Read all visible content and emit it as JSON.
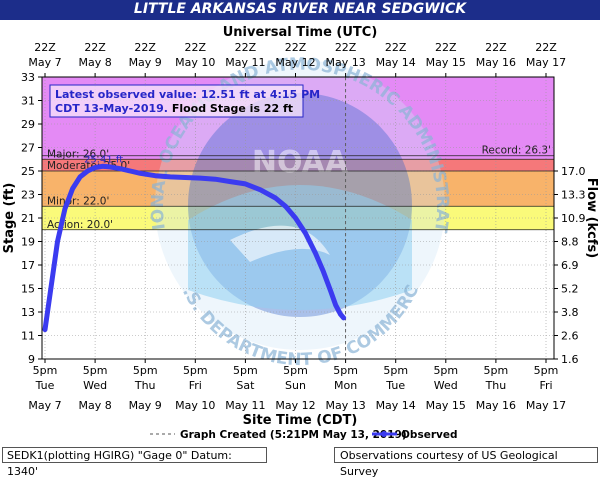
{
  "chart_data": {
    "type": "line",
    "title": "LITTLE ARKANSAS RIVER NEAR SEDGWICK",
    "top_axis_label": "Universal Time (UTC)",
    "xlabel": "Site Time (CDT)",
    "ylabel_left": "Stage (ft)",
    "ylabel_right": "Flow (kcfs)",
    "ylim": [
      9,
      33
    ],
    "left_ticks": [
      9,
      11,
      13,
      15,
      17,
      19,
      21,
      23,
      25,
      27,
      29,
      31,
      33
    ],
    "right_ticks": [
      {
        "label": "1.6",
        "stage": 9
      },
      {
        "label": "2.6",
        "stage": 11
      },
      {
        "label": "3.8",
        "stage": 13
      },
      {
        "label": "5.2",
        "stage": 15
      },
      {
        "label": "6.9",
        "stage": 17
      },
      {
        "label": "8.8",
        "stage": 19
      },
      {
        "label": "10.9",
        "stage": 21
      },
      {
        "label": "13.3",
        "stage": 23
      },
      {
        "label": "17.0",
        "stage": 25
      }
    ],
    "top_ticks": [
      {
        "time": "22Z",
        "date": "May 7"
      },
      {
        "time": "22Z",
        "date": "May 8"
      },
      {
        "time": "22Z",
        "date": "May 9"
      },
      {
        "time": "22Z",
        "date": "May 10"
      },
      {
        "time": "22Z",
        "date": "May 11"
      },
      {
        "time": "22Z",
        "date": "May 12"
      },
      {
        "time": "22Z",
        "date": "May 13"
      },
      {
        "time": "22Z",
        "date": "May 14"
      },
      {
        "time": "22Z",
        "date": "May 15"
      },
      {
        "time": "22Z",
        "date": "May 16"
      },
      {
        "time": "22Z",
        "date": "May 17"
      }
    ],
    "bottom_ticks": [
      {
        "time": "5pm",
        "day": "Tue",
        "date": "May 7"
      },
      {
        "time": "5pm",
        "day": "Wed",
        "date": "May 8"
      },
      {
        "time": "5pm",
        "day": "Thu",
        "date": "May 9"
      },
      {
        "time": "5pm",
        "day": "Fri",
        "date": "May 10"
      },
      {
        "time": "5pm",
        "day": "Sat",
        "date": "May 11"
      },
      {
        "time": "5pm",
        "day": "Sun",
        "date": "May 12"
      },
      {
        "time": "5pm",
        "day": "Mon",
        "date": "May 13"
      },
      {
        "time": "5pm",
        "day": "Tue",
        "date": "May 14"
      },
      {
        "time": "5pm",
        "day": "Wed",
        "date": "May 15"
      },
      {
        "time": "5pm",
        "day": "Thu",
        "date": "May 16"
      },
      {
        "time": "5pm",
        "day": "Fri",
        "date": "May 17"
      }
    ],
    "flood_categories": [
      {
        "name": "Major",
        "label": "Major: 26.0'",
        "from": 26,
        "to": 33,
        "color": "#e48af5"
      },
      {
        "name": "Moderate",
        "label": "Moderate: 25.0'",
        "from": 25,
        "to": 26,
        "color": "#f5787a"
      },
      {
        "name": "Minor",
        "label": "Minor: 22.0'",
        "from": 22,
        "to": 25,
        "color": "#f8b36a"
      },
      {
        "name": "Action",
        "label": "Action: 20.0'",
        "from": 20,
        "to": 22,
        "color": "#fafa7a"
      }
    ],
    "record": {
      "label": "Record: 26.3'",
      "value": 26.3
    },
    "peak_label": "25.41 ft",
    "graph_created_day": 6.0,
    "series": [
      {
        "name": "Observed",
        "color": "#3b3bf0",
        "x_day_offset": [
          0.0,
          0.05,
          0.15,
          0.25,
          0.4,
          0.55,
          0.7,
          0.85,
          1.0,
          1.15,
          1.3,
          1.5,
          1.7,
          1.9,
          2.2,
          2.5,
          2.8,
          3.1,
          3.4,
          3.7,
          4.0,
          4.3,
          4.6,
          4.8,
          5.0,
          5.2,
          5.4,
          5.55,
          5.7,
          5.8,
          5.9,
          5.96
        ],
        "y": [
          11.5,
          13.0,
          16.0,
          19.0,
          21.8,
          23.5,
          24.5,
          25.0,
          25.3,
          25.4,
          25.35,
          25.2,
          25.0,
          24.8,
          24.6,
          24.5,
          24.45,
          24.4,
          24.3,
          24.1,
          23.9,
          23.4,
          22.7,
          22.0,
          21.0,
          19.7,
          18.0,
          16.5,
          14.8,
          13.6,
          12.8,
          12.5
        ]
      }
    ]
  },
  "info_box": {
    "line1": "Latest observed value: 12.51 ft at 4:15 PM",
    "line2a": "CDT 13-May-2019.",
    "line2b": " Flood Stage is 22 ft"
  },
  "legend": {
    "graph_created": "Graph Created (5:21PM May 13, 2019)",
    "observed": "Observed"
  },
  "footer": {
    "left": "SEDK1(plotting HGIRG) \"Gage 0\" Datum: 1340'",
    "right": "Observations courtesy of US Geological Survey"
  },
  "watermark": {
    "ring_text": "NATIONAL OCEANIC AND ATMOSPHERIC ADMINISTRATION",
    "bottom_text": "U.S. DEPARTMENT OF COMMERCE",
    "center_text": "NOAA"
  },
  "colors": {
    "title_bar": "#1c2d8a",
    "info_text": "#2626c8",
    "series": "#3b3bf0"
  }
}
